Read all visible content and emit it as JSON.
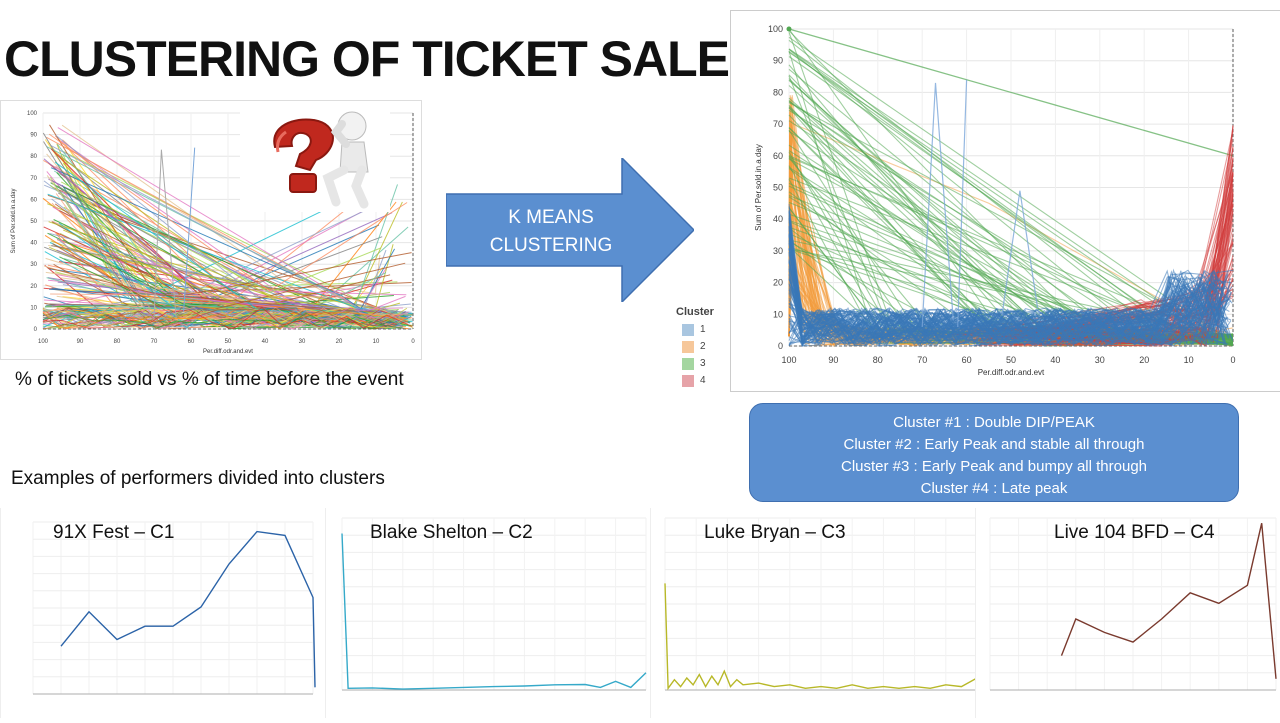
{
  "title": "CLUSTERING OF TICKET SALES",
  "caption_top": "% of tickets sold vs % of time before the event",
  "arrow_text": [
    "K MEANS",
    "CLUSTERING"
  ],
  "caption_examples": "Examples of performers divided into clusters",
  "colors": {
    "arrow": "#5b8fd0",
    "cluster1": "#3a78b8",
    "cluster2": "#f29a3a",
    "cluster3": "#52a852",
    "cluster4": "#d23c3c"
  },
  "legend": {
    "title": "Cluster",
    "items": [
      "1",
      "2",
      "3",
      "4"
    ],
    "colors": [
      "#a9c6e0",
      "#f6c79a",
      "#a4d6a0",
      "#e6a3a8"
    ]
  },
  "cluster_descriptions": [
    "Cluster #1 : Double DIP/PEAK",
    "Cluster #2 : Early Peak and stable all through",
    "Cluster #3 : Early Peak and bumpy all through",
    "Cluster #4 : Late peak"
  ],
  "examples": [
    {
      "title": "91X Fest – C1",
      "color": "#2b63a8"
    },
    {
      "title": "Blake Shelton – C2",
      "color": "#35a9c9"
    },
    {
      "title": "Luke Bryan – C3",
      "color": "#b8b828"
    },
    {
      "title": "Live 104 BFD – C4",
      "color": "#7a3a2e"
    }
  ],
  "chart_data": [
    {
      "type": "line",
      "xlabel": "Per.diff.odr.and.evt",
      "ylabel": "Sum of Per.sold.in.a.day",
      "x_ticks": [
        100,
        90,
        80,
        70,
        60,
        50,
        40,
        30,
        20,
        10,
        0
      ],
      "y_ticks": [
        0,
        10,
        20,
        30,
        40,
        50,
        60,
        70,
        80,
        90,
        100
      ],
      "xlim": [
        100,
        0
      ],
      "ylim": [
        0,
        100
      ],
      "legend": "none"
    },
    {
      "type": "line",
      "xlabel": "Per.diff.odr.and.evt",
      "ylabel": "Sum of Per.sold.in.a.day",
      "x_ticks": [
        100,
        90,
        80,
        70,
        60,
        50,
        40,
        30,
        20,
        10,
        0
      ],
      "y_ticks": [
        0,
        10,
        20,
        30,
        40,
        50,
        60,
        70,
        80,
        90,
        100
      ],
      "xlim": [
        100,
        0
      ],
      "ylim": [
        0,
        100
      ],
      "legend": "left",
      "series_names": [
        "1",
        "2",
        "3",
        "4"
      ]
    },
    {
      "type": "line",
      "title": "91X Fest – C1",
      "x": [
        90,
        80,
        70,
        60,
        50,
        40,
        30,
        20,
        10,
        0
      ],
      "y": [
        5,
        8.6,
        5.7,
        7.1,
        7.1,
        9.1,
        13.6,
        17,
        16.6,
        10.1
      ],
      "tail": 0.7,
      "ylim": [
        0,
        18
      ]
    },
    {
      "type": "line",
      "title": "Blake Shelton – C2",
      "x": [
        100,
        98,
        90,
        80,
        70,
        60,
        50,
        40,
        30,
        20,
        15,
        10,
        5,
        0
      ],
      "y": [
        91,
        1,
        1.2,
        0.5,
        1,
        1.5,
        2,
        2.3,
        3,
        3.2,
        1.5,
        5,
        1.5,
        10
      ],
      "ylim": [
        0,
        100
      ]
    },
    {
      "type": "line",
      "title": "Luke Bryan – C3",
      "x": [
        100,
        99,
        97,
        95,
        93,
        91,
        89,
        87,
        85,
        83,
        81,
        79,
        77,
        75,
        70,
        65,
        60,
        55,
        50,
        45,
        40,
        35,
        30,
        25,
        20,
        15,
        10,
        5,
        0
      ],
      "y": [
        62,
        1,
        6,
        2,
        7,
        3,
        9,
        2,
        8,
        3,
        11,
        2,
        6,
        3,
        4,
        2,
        3,
        1,
        2,
        1,
        3,
        1,
        2,
        1,
        2,
        1,
        3,
        2,
        7
      ],
      "ylim": [
        0,
        100
      ]
    },
    {
      "type": "line",
      "title": "Live 104 BFD – C4",
      "x": [
        75,
        70,
        60,
        50,
        40,
        30,
        20,
        10,
        5,
        0
      ],
      "y": [
        4.6,
        9.5,
        7.7,
        6.4,
        9.5,
        13,
        11.6,
        14,
        22.3,
        1.5
      ],
      "ylim": [
        0,
        23
      ]
    }
  ]
}
